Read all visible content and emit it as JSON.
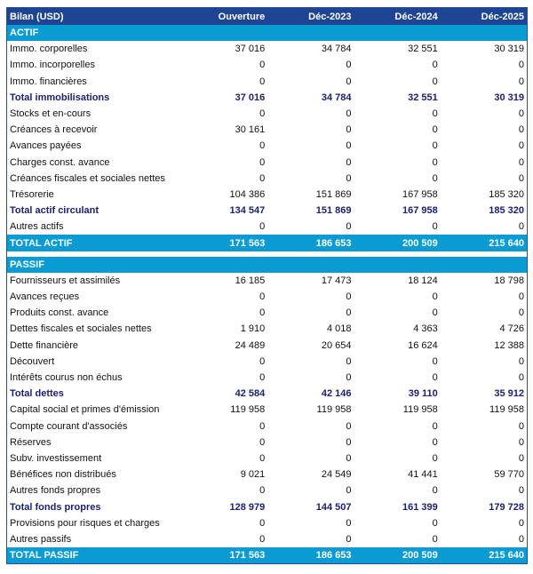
{
  "header": {
    "title": "Bilan (USD)",
    "columns": [
      "Ouverture",
      "Déc-2023",
      "Déc-2024",
      "Déc-2025"
    ]
  },
  "sections": [
    {
      "title": "ACTIF",
      "rows": [
        {
          "label": "Immo. corporelles",
          "values": [
            "37 016",
            "34 784",
            "32 551",
            "30 319"
          ],
          "type": "normal"
        },
        {
          "label": "Immo. incorporelles",
          "values": [
            "0",
            "0",
            "0",
            "0"
          ],
          "type": "normal"
        },
        {
          "label": "Immo. financières",
          "values": [
            "0",
            "0",
            "0",
            "0"
          ],
          "type": "normal"
        },
        {
          "label": "Total immobilisations",
          "values": [
            "37 016",
            "34 784",
            "32 551",
            "30 319"
          ],
          "type": "tot"
        },
        {
          "label": "Stocks et en-cours",
          "values": [
            "0",
            "0",
            "0",
            "0"
          ],
          "type": "normal"
        },
        {
          "label": "Créances à recevoir",
          "values": [
            "30 161",
            "0",
            "0",
            "0"
          ],
          "type": "normal"
        },
        {
          "label": "Avances payées",
          "values": [
            "0",
            "0",
            "0",
            "0"
          ],
          "type": "normal"
        },
        {
          "label": "Charges const. avance",
          "values": [
            "0",
            "0",
            "0",
            "0"
          ],
          "type": "normal"
        },
        {
          "label": "Créances fiscales et sociales nettes",
          "values": [
            "0",
            "0",
            "0",
            "0"
          ],
          "type": "normal"
        },
        {
          "label": "Trésorerie",
          "values": [
            "104 386",
            "151 869",
            "167 958",
            "185 320"
          ],
          "type": "normal"
        },
        {
          "label": "Total actif circulant",
          "values": [
            "134 547",
            "151 869",
            "167 958",
            "185 320"
          ],
          "type": "tot"
        },
        {
          "label": "Autres actifs",
          "values": [
            "0",
            "0",
            "0",
            "0"
          ],
          "type": "normal"
        },
        {
          "label": "TOTAL ACTIF",
          "values": [
            "171 563",
            "186 653",
            "200 509",
            "215 640"
          ],
          "type": "grand"
        }
      ]
    },
    {
      "title": "PASSIF",
      "rows": [
        {
          "label": "Fournisseurs et assimilés",
          "values": [
            "16 185",
            "17 473",
            "18 124",
            "18 798"
          ],
          "type": "normal"
        },
        {
          "label": "Avances reçues",
          "values": [
            "0",
            "0",
            "0",
            "0"
          ],
          "type": "normal"
        },
        {
          "label": "Produits const. avance",
          "values": [
            "0",
            "0",
            "0",
            "0"
          ],
          "type": "normal"
        },
        {
          "label": "Dettes fiscales et sociales nettes",
          "values": [
            "1 910",
            "4 018",
            "4 363",
            "4 726"
          ],
          "type": "normal"
        },
        {
          "label": "Dette financière",
          "values": [
            "24 489",
            "20 654",
            "16 624",
            "12 388"
          ],
          "type": "normal"
        },
        {
          "label": "Découvert",
          "values": [
            "0",
            "0",
            "0",
            "0"
          ],
          "type": "normal"
        },
        {
          "label": "Intérêts courus non échus",
          "values": [
            "0",
            "0",
            "0",
            "0"
          ],
          "type": "normal"
        },
        {
          "label": "Total dettes",
          "values": [
            "42 584",
            "42 146",
            "39 110",
            "35 912"
          ],
          "type": "tot"
        },
        {
          "label": "Capital social et primes d'émission",
          "values": [
            "119 958",
            "119 958",
            "119 958",
            "119 958"
          ],
          "type": "normal"
        },
        {
          "label": "Compte courant d'associés",
          "values": [
            "0",
            "0",
            "0",
            "0"
          ],
          "type": "normal"
        },
        {
          "label": "Réserves",
          "values": [
            "0",
            "0",
            "0",
            "0"
          ],
          "type": "normal"
        },
        {
          "label": "Subv. investissement",
          "values": [
            "0",
            "0",
            "0",
            "0"
          ],
          "type": "normal"
        },
        {
          "label": "Bénéfices non distribués",
          "values": [
            "9 021",
            "24 549",
            "41 441",
            "59 770"
          ],
          "type": "normal"
        },
        {
          "label": "Autres fonds propres",
          "values": [
            "0",
            "0",
            "0",
            "0"
          ],
          "type": "normal"
        },
        {
          "label": "Total fonds propres",
          "values": [
            "128 979",
            "144 507",
            "161 399",
            "179 728"
          ],
          "type": "tot"
        },
        {
          "label": "Provisions pour risques et charges",
          "values": [
            "0",
            "0",
            "0",
            "0"
          ],
          "type": "normal"
        },
        {
          "label": "Autres passifs",
          "values": [
            "0",
            "0",
            "0",
            "0"
          ],
          "type": "normal"
        },
        {
          "label": "TOTAL PASSIF",
          "values": [
            "171 563",
            "186 653",
            "200 509",
            "215 640"
          ],
          "type": "grand"
        }
      ]
    }
  ]
}
